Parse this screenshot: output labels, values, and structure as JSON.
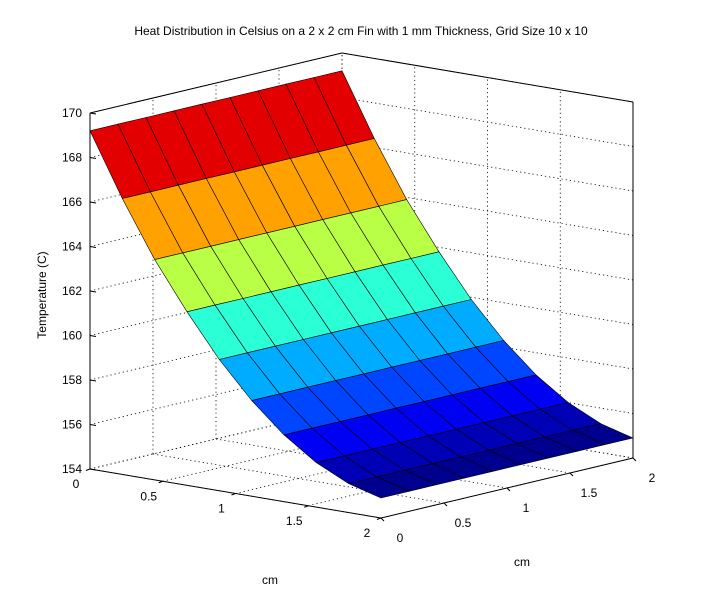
{
  "chart_data": {
    "type": "surface",
    "title": "Heat Distribution in Celsius on a 2 x 2 cm Fin with 1 mm Thickness, Grid Size 10 x 10",
    "xlabel": "cm",
    "ylabel": "cm",
    "zlabel": "Temperature (C)",
    "xlim": [
      0,
      2
    ],
    "ylim": [
      0,
      2
    ],
    "zlim": [
      154,
      170
    ],
    "xticks": [
      "0",
      "0.5",
      "1",
      "1.5",
      "2"
    ],
    "yticks": [
      "0",
      "0.5",
      "1",
      "1.5",
      "2"
    ],
    "zticks": [
      "154",
      "156",
      "158",
      "160",
      "162",
      "164",
      "166",
      "168",
      "170"
    ],
    "colormap": "jet",
    "grid": true,
    "x_grid": [
      0,
      0.2222,
      0.4444,
      0.6667,
      0.8889,
      1.1111,
      1.3333,
      1.5556,
      1.7778,
      2
    ],
    "y_grid": [
      0,
      0.2222,
      0.4444,
      0.6667,
      0.8889,
      1.1111,
      1.3333,
      1.5556,
      1.7778,
      2
    ],
    "temperature_along_x": [
      169.2,
      166.4,
      163.9,
      161.8,
      159.9,
      158.3,
      157.0,
      156.0,
      155.3,
      154.9
    ]
  }
}
